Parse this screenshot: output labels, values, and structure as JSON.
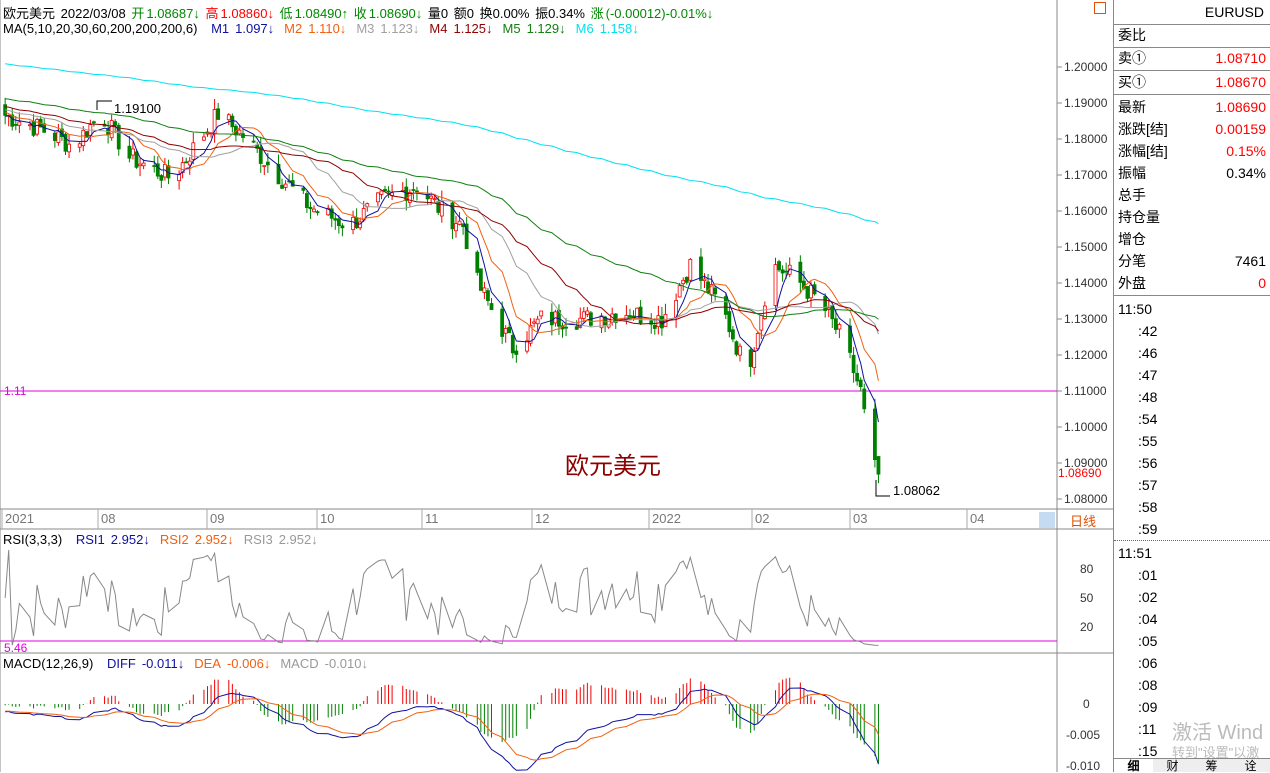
{
  "header": {
    "name": "欧元美元",
    "date": "2022/03/08",
    "open_label": "开",
    "open": "1.08687↓",
    "high_label": "高",
    "high": "1.08860↓",
    "low_label": "低",
    "low": "1.08490↑",
    "close_label": "收",
    "close": "1.08690↓",
    "vol": "量0",
    "amount": "额0",
    "turnover": "换0.00%",
    "amplitude": "振0.34%",
    "change_label": "涨",
    "change": "(-0.00012)-0.01%↓"
  },
  "ma": {
    "label": "MA(5,10,20,30,60,200,200,200,6)",
    "items": [
      {
        "name": "M1",
        "value": "1.097↓",
        "color": "#1010a0"
      },
      {
        "name": "M2",
        "value": "1.110↓",
        "color": "#f06010"
      },
      {
        "name": "M3",
        "value": "1.123↓",
        "color": "#a0a0a0"
      },
      {
        "name": "M4",
        "value": "1.125↓",
        "color": "#900000"
      },
      {
        "name": "M5",
        "value": "1.129↓",
        "color": "#108010"
      },
      {
        "name": "M6",
        "value": "1.158↓",
        "color": "#00e0f0"
      }
    ]
  },
  "chart": {
    "watermark": "欧元美元",
    "hline_label": "1.11",
    "high_mark": "1.19100",
    "low_mark": "1.08062",
    "last_price": "1.08690",
    "price_ticks": [
      "1.20000",
      "1.19000",
      "1.18000",
      "1.17000",
      "1.16000",
      "1.15000",
      "1.14000",
      "1.13000",
      "1.12000",
      "1.11000",
      "1.10000",
      "1.09000",
      "1.08000"
    ],
    "time_labels": [
      "2021",
      "08",
      "09",
      "10",
      "11",
      "12",
      "2022",
      "02",
      "03",
      "04"
    ],
    "period": "日线"
  },
  "rsi": {
    "label": "RSI(3,3,3)",
    "items": [
      {
        "name": "RSI1",
        "value": "2.952↓",
        "color": "#1010a0"
      },
      {
        "name": "RSI2",
        "value": "2.952↓",
        "color": "#f06010"
      },
      {
        "name": "RSI3",
        "value": "2.952↓",
        "color": "#999"
      }
    ],
    "ticks": [
      "80",
      "50",
      "20"
    ],
    "level_label": "5.46"
  },
  "macd": {
    "label": "MACD(12,26,9)",
    "items": [
      {
        "name": "DIFF",
        "value": "-0.011↓",
        "color": "#1010a0"
      },
      {
        "name": "DEA",
        "value": "-0.006↓",
        "color": "#f06010"
      },
      {
        "name": "MACD",
        "value": "-0.010↓",
        "color": "#999"
      }
    ],
    "ticks": [
      "0",
      "-0.005",
      "-0.010"
    ]
  },
  "chart_data": {
    "type": "candlestick",
    "close_keypoints": [
      [
        "2021-07-04",
        1.187
      ],
      [
        "2021-07-17",
        1.182
      ],
      [
        "2021-07-24",
        1.178
      ],
      [
        "2021-08-01",
        1.187
      ],
      [
        "2021-08-09",
        1.175
      ],
      [
        "2021-08-21",
        1.169
      ],
      [
        "2021-09-03",
        1.187
      ],
      [
        "2021-09-10",
        1.181
      ],
      [
        "2021-09-18",
        1.172
      ],
      [
        "2021-09-29",
        1.161
      ],
      [
        "2021-10-10",
        1.156
      ],
      [
        "2021-10-19",
        1.163
      ],
      [
        "2021-10-29",
        1.167
      ],
      [
        "2021-11-05",
        1.16
      ],
      [
        "2021-11-11",
        1.156
      ],
      [
        "2021-11-15",
        1.14
      ],
      [
        "2021-11-25",
        1.122
      ],
      [
        "2021-12-03",
        1.13
      ],
      [
        "2021-12-15",
        1.13
      ],
      [
        "2021-12-26",
        1.132
      ],
      [
        "2022-01-06",
        1.13
      ],
      [
        "2022-01-14",
        1.145
      ],
      [
        "2022-01-23",
        1.133
      ],
      [
        "2022-01-30",
        1.115
      ],
      [
        "2022-02-06",
        1.145
      ],
      [
        "2022-02-12",
        1.142
      ],
      [
        "2022-02-20",
        1.134
      ],
      [
        "2022-02-26",
        1.124
      ],
      [
        "2022-03-03",
        1.11
      ],
      [
        "2022-03-06",
        1.09
      ],
      [
        "2022-03-08",
        1.0869
      ]
    ],
    "hline": 1.11,
    "up_color": "#f00000",
    "down_color": "#008000"
  },
  "quote": {
    "symbol": "EURUSD",
    "rows": [
      {
        "label": "委比",
        "value": ""
      },
      {
        "label": "卖①",
        "value": "1.08710",
        "red": true
      },
      {
        "label": "买①",
        "value": "1.08670",
        "red": true
      },
      {
        "label": "最新",
        "value": "1.08690",
        "red": true
      },
      {
        "label": "涨跌[结]",
        "value": "0.00159",
        "red": true
      },
      {
        "label": "涨幅[结]",
        "value": "0.15%",
        "red": true
      },
      {
        "label": "振幅",
        "value": "0.34%"
      },
      {
        "label": "总手",
        "value": ""
      },
      {
        "label": "持仓量",
        "value": ""
      },
      {
        "label": "增仓",
        "value": ""
      },
      {
        "label": "分笔",
        "value": "7461"
      },
      {
        "label": "外盘",
        "value": "0",
        "red": true
      }
    ]
  },
  "ticks": [
    {
      "t": "11:50"
    },
    {
      "t": ":42"
    },
    {
      "t": ":46"
    },
    {
      "t": ":47"
    },
    {
      "t": ":48"
    },
    {
      "t": ":54"
    },
    {
      "t": ":55"
    },
    {
      "t": ":56"
    },
    {
      "t": ":57"
    },
    {
      "t": ":58"
    },
    {
      "t": ":59"
    },
    {
      "t": "11:51"
    },
    {
      "t": ":01"
    },
    {
      "t": ":02"
    },
    {
      "t": ":04"
    },
    {
      "t": ":05"
    },
    {
      "t": ":06"
    },
    {
      "t": ":08"
    },
    {
      "t": ":09"
    },
    {
      "t": ":11"
    },
    {
      "t": ":15"
    }
  ],
  "tabs": [
    "细",
    "财",
    "筹",
    "诠"
  ],
  "activation": {
    "line1": "激活 Wind",
    "line2": "转到\"设置\"以激"
  }
}
